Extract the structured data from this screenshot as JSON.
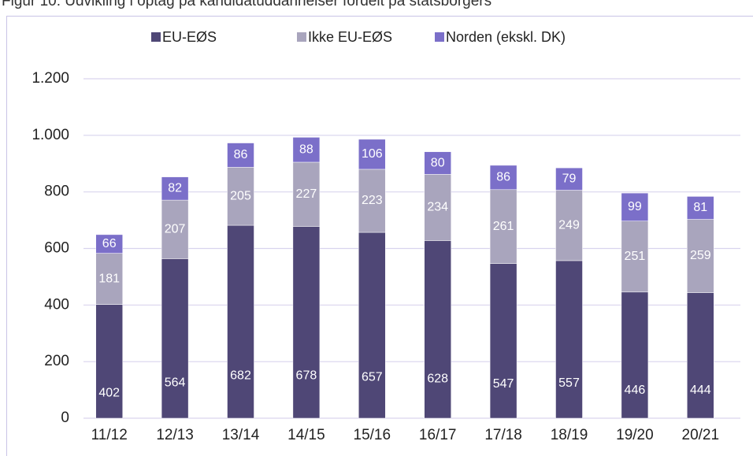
{
  "chart_data": {
    "type": "stacked_bar",
    "title": "Figur 10: Udvikling i optag på kandidatuddannelser fordelt på statsborgers",
    "categories": [
      "11/12",
      "12/13",
      "13/14",
      "14/15",
      "15/16",
      "16/17",
      "17/18",
      "18/19",
      "19/20",
      "20/21"
    ],
    "series": [
      {
        "name": "EU-EØS",
        "color": "#4f4776",
        "values": [
          402,
          564,
          682,
          678,
          657,
          628,
          547,
          557,
          446,
          444
        ]
      },
      {
        "name": "Ikke EU-EØS",
        "color": "#a9a5bd",
        "values": [
          181,
          207,
          205,
          227,
          223,
          234,
          261,
          249,
          251,
          259
        ]
      },
      {
        "name": "Norden (ekskl. DK)",
        "color": "#7b6fc9",
        "values": [
          66,
          82,
          86,
          88,
          106,
          80,
          86,
          79,
          99,
          81
        ]
      }
    ],
    "ylim": [
      0,
      1200
    ],
    "yticks": [
      0,
      200,
      400,
      600,
      800,
      {
        "value": 1000,
        "label": "1.000"
      },
      {
        "value": 1200,
        "label": "1.200"
      }
    ],
    "grid": true,
    "legend": "top"
  }
}
